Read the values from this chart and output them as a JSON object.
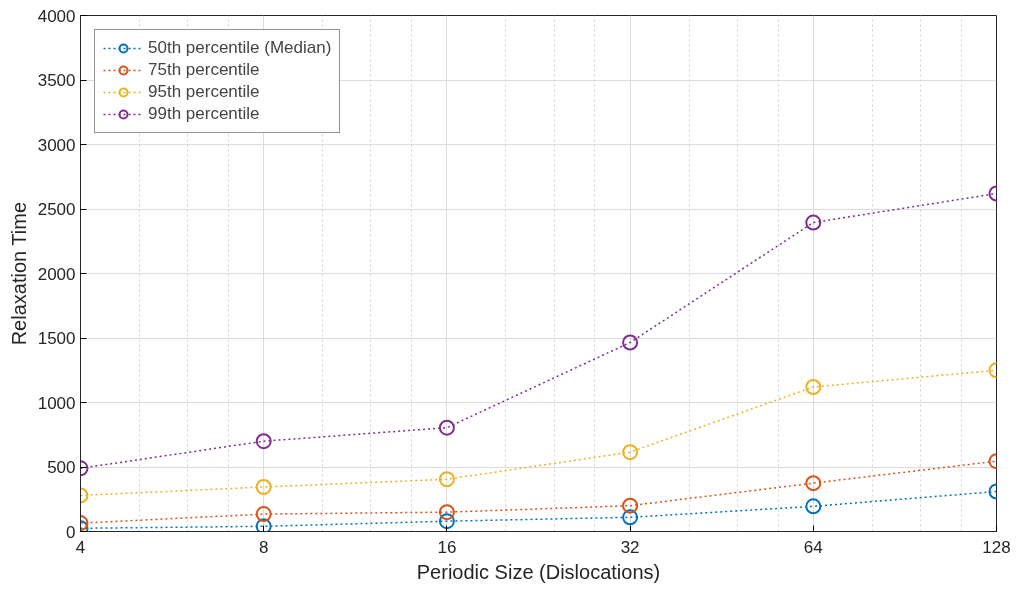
{
  "chart_data": {
    "type": "line",
    "xlabel": "Periodic Size (Dislocations)",
    "ylabel": "Relaxation Time",
    "x": [
      4,
      8,
      16,
      32,
      64,
      128
    ],
    "log": "x",
    "xlim": [
      4,
      128
    ],
    "xticks": [
      4,
      8,
      16,
      32,
      64,
      128
    ],
    "ylim": [
      0,
      4000
    ],
    "yticks": [
      0,
      500,
      1000,
      1500,
      2000,
      2500,
      3000,
      3500,
      4000
    ],
    "grid": true,
    "legend": "top left",
    "marker": "circle",
    "line_style": "dotted",
    "series": [
      {
        "name": "50th percentile (Median)",
        "color": "#0072bd",
        "values": [
          25,
          40,
          80,
          110,
          195,
          310
        ]
      },
      {
        "name": "75th percentile",
        "color": "#d95319",
        "values": [
          65,
          135,
          150,
          200,
          375,
          545
        ]
      },
      {
        "name": "95th percentile",
        "color": "#edb120",
        "values": [
          280,
          345,
          405,
          615,
          1120,
          1250
        ]
      },
      {
        "name": "99th percentile",
        "color": "#7e2f8e",
        "values": [
          490,
          700,
          805,
          1465,
          2395,
          2620
        ]
      }
    ]
  }
}
